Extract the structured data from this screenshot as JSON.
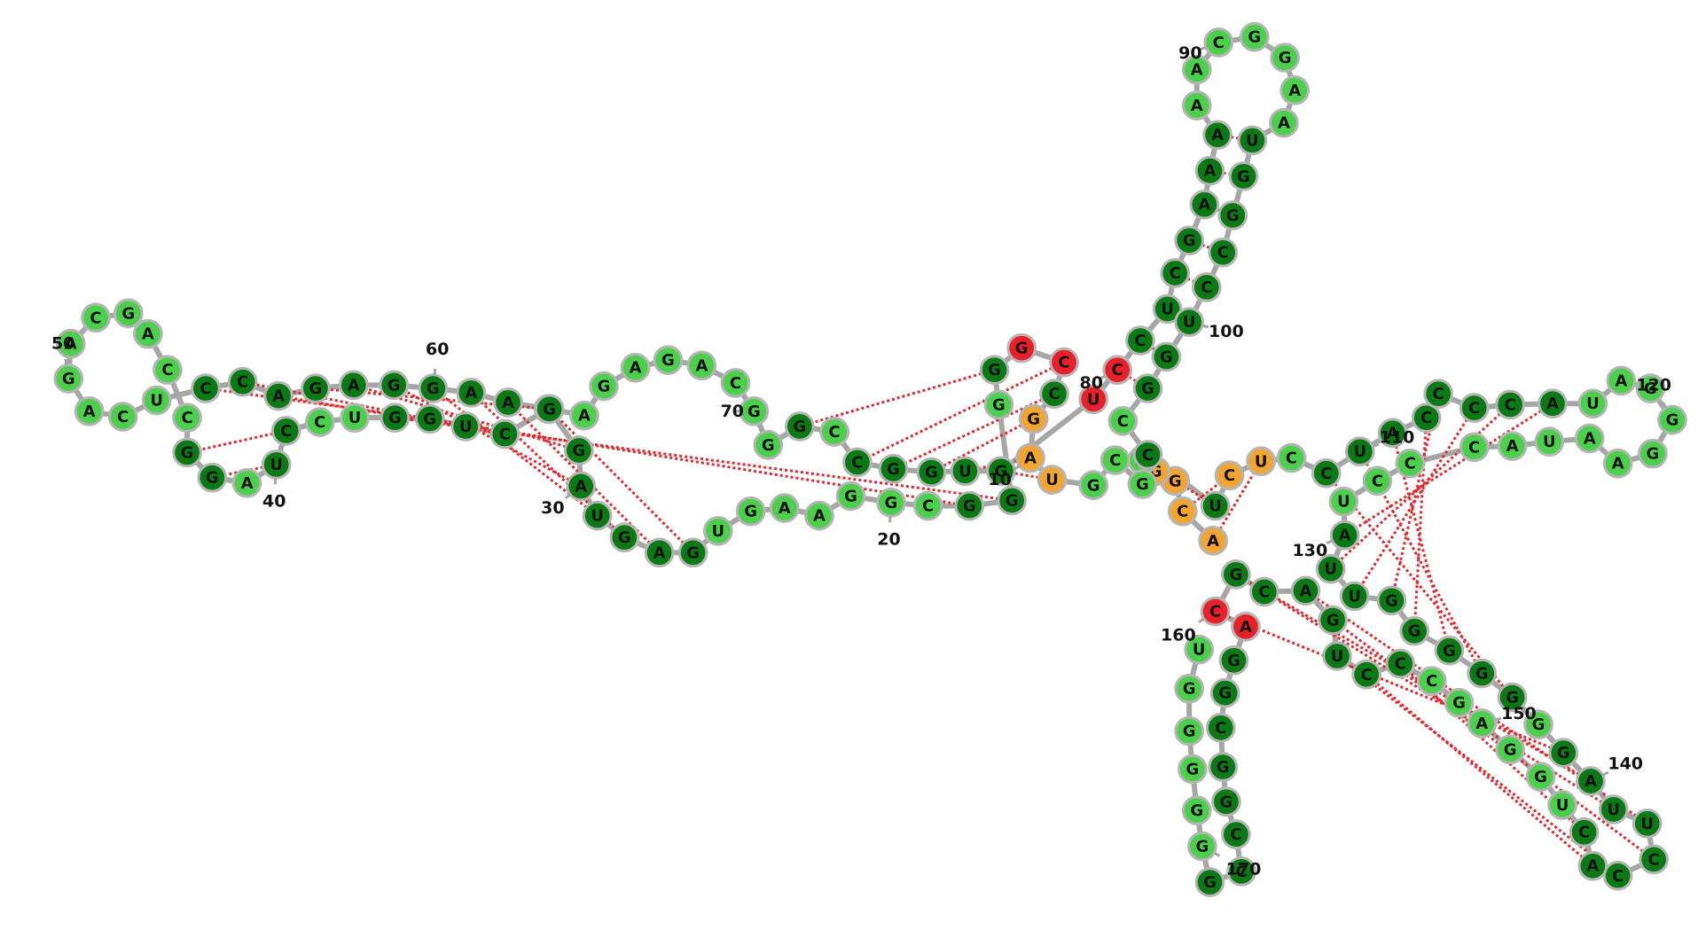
{
  "colors": {
    "dark_green": "#0b7a14",
    "light_green": "#4ccf4c",
    "orange": "#f2a531",
    "red": "#e8202a",
    "backbone": "#a6a6a6",
    "base_pair": "#e8262b"
  },
  "bases": [
    "A",
    "C",
    "G",
    "G",
    "A",
    "G",
    "C",
    "G",
    "U",
    "A",
    "G",
    "C",
    "C",
    "G",
    "G",
    "G",
    "G",
    "G",
    "C",
    "G",
    "G",
    "A",
    "A",
    "G",
    "U",
    "G",
    "A",
    "G",
    "U",
    "A",
    "G",
    "G",
    "C",
    "U",
    "G",
    "G",
    "U",
    "C",
    "C",
    "U",
    "A",
    "G",
    "G",
    "C",
    "C",
    "A",
    "G",
    "C",
    "A",
    "G",
    "A",
    "C",
    "U",
    "C",
    "C",
    "A",
    "G",
    "A",
    "G",
    "G",
    "A",
    "A",
    "G",
    "A",
    "G",
    "A",
    "G",
    "A",
    "C",
    "G",
    "G",
    "G",
    "C",
    "C",
    "G",
    "G",
    "U",
    "G",
    "U",
    "C",
    "C",
    "U",
    "C",
    "G",
    "A",
    "A",
    "A",
    "A",
    "A",
    "C",
    "G",
    "G",
    "A",
    "A",
    "U",
    "G",
    "G",
    "C",
    "C",
    "U",
    "G",
    "G",
    "C",
    "C",
    "U",
    "C",
    "U",
    "C",
    "C",
    "U",
    "A",
    "C",
    "C",
    "C",
    "C",
    "A",
    "U",
    "A",
    "G",
    "G",
    "G",
    "A",
    "A",
    "U",
    "A",
    "C",
    "C",
    "C",
    "U",
    "A",
    "U",
    "U",
    "G",
    "G",
    "G",
    "G",
    "G",
    "G",
    "G",
    "A",
    "U",
    "U",
    "C",
    "C",
    "A",
    "C",
    "U",
    "G",
    "G",
    "A",
    "G",
    "C",
    "C",
    "C",
    "U",
    "G",
    "A",
    "C",
    "G",
    "C",
    "A",
    "G",
    "G",
    "C",
    "G",
    "G",
    "C",
    "C",
    "G",
    "G",
    "G",
    "G",
    "G",
    "G",
    "U",
    "G",
    "U",
    "C",
    "G",
    "A",
    "G",
    "U",
    "C",
    "G",
    "G",
    "U",
    "U",
    "A",
    "C",
    "G",
    "C",
    "C",
    "C"
  ],
  "labels": [
    {
      "pos": 10,
      "text": "10"
    },
    {
      "pos": 20,
      "text": "20"
    },
    {
      "pos": 30,
      "text": "30"
    },
    {
      "pos": 40,
      "text": "40"
    },
    {
      "pos": 50,
      "text": "50"
    },
    {
      "pos": 60,
      "text": "60"
    },
    {
      "pos": 70,
      "text": "70"
    },
    {
      "pos": 80,
      "text": "80"
    },
    {
      "pos": 90,
      "text": "90"
    },
    {
      "pos": 100,
      "text": "100"
    },
    {
      "pos": 110,
      "text": "110"
    },
    {
      "pos": 120,
      "text": "120"
    },
    {
      "pos": 130,
      "text": "130"
    },
    {
      "pos": 140,
      "text": "140"
    },
    {
      "pos": 150,
      "text": "150"
    },
    {
      "pos": 160,
      "text": "160"
    },
    {
      "pos": 170,
      "text": "170"
    }
  ]
}
